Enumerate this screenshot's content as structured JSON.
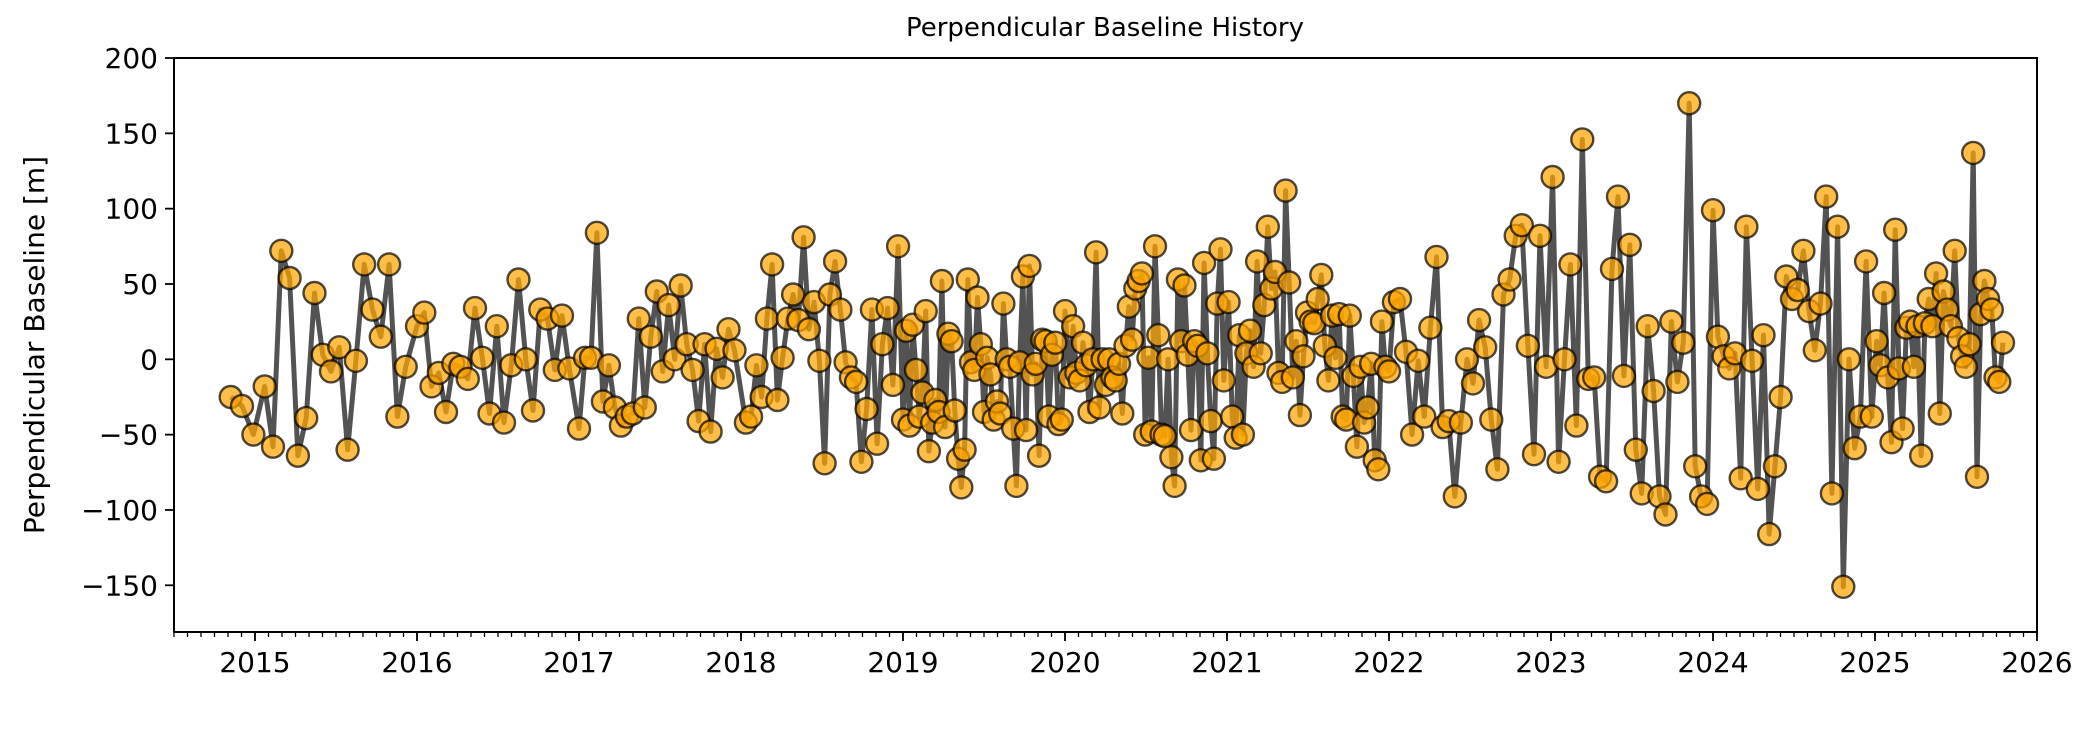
{
  "chart_data": {
    "type": "line",
    "title": "Perpendicular Baseline History",
    "xlabel": "",
    "ylabel": "Perpendicular Baseline [m]",
    "xlim": [
      2014.5,
      2026.0
    ],
    "ylim": [
      -181,
      200
    ],
    "x_ticks": [
      2015,
      2016,
      2017,
      2018,
      2019,
      2020,
      2021,
      2022,
      2023,
      2024,
      2025,
      2026
    ],
    "x_tick_labels": [
      "2015",
      "2016",
      "2017",
      "2018",
      "2019",
      "2020",
      "2021",
      "2022",
      "2023",
      "2024",
      "2025",
      "2026"
    ],
    "y_ticks": [
      200,
      150,
      100,
      50,
      0,
      -50,
      -100,
      -150
    ],
    "y_tick_labels": [
      "200",
      "150",
      "100",
      "50",
      "0",
      "−50",
      "−100",
      "−150"
    ],
    "grid": false,
    "legend": null,
    "colors": {
      "line": "#4a4a4a",
      "marker_fill": "#ffa500",
      "marker_edge": "#000000"
    },
    "series": [
      {
        "name": "Perpendicular baseline",
        "note": "acquisitions grouped by year; dates evenly spaced within each group (decimal years)",
        "segments": [
          {
            "x_start": 2014.85,
            "x_end": 2014.99,
            "y": [
              -25,
              -31,
              -50
            ]
          },
          {
            "x_start": 2015.06,
            "x_end": 2015.93,
            "y": [
              -18,
              -58,
              72,
              54,
              -64,
              -39,
              44,
              3,
              -8,
              8,
              -60,
              -1,
              63,
              33,
              15,
              63,
              -38,
              -5
            ]
          },
          {
            "x_start": 2016.0,
            "x_end": 2016.94,
            "y": [
              22,
              31,
              -18,
              -9,
              -35,
              -3,
              -5,
              -13,
              34,
              1,
              -36,
              22,
              -42,
              -4,
              53,
              0,
              -34,
              33,
              27,
              -7,
              29,
              -6
            ]
          },
          {
            "x_start": 2017.0,
            "x_end": 2017.96,
            "y": [
              -46,
              1,
              1,
              84,
              -28,
              -4,
              -32,
              -44,
              -38,
              -36,
              27,
              -32,
              15,
              45,
              -8,
              36,
              0,
              49,
              10,
              -7,
              -41,
              10,
              -48,
              7,
              -12,
              20,
              6
            ]
          },
          {
            "x_start": 2018.03,
            "x_end": 2018.97,
            "y": [
              -42,
              -38,
              -4,
              -25,
              27,
              63,
              -27,
              1,
              27,
              43,
              26,
              81,
              20,
              38,
              -1,
              -69,
              43,
              65,
              33,
              -2,
              -12,
              -15,
              -68,
              -33,
              33,
              -56,
              10,
              34,
              -17,
              75
            ]
          },
          {
            "x_start": 2019.0,
            "x_end": 2020.0,
            "y": [
              -40,
              19,
              -44,
              23,
              -7,
              -38,
              -22,
              32,
              -61,
              -42,
              -27,
              -35,
              52,
              -45,
              17,
              12,
              -34,
              -66,
              -85,
              -60,
              53,
              -2,
              -7,
              41,
              10,
              -35,
              1,
              -10,
              -40,
              -28,
              -36,
              37,
              0,
              -5,
              -46,
              -84,
              -2,
              55,
              -47,
              62,
              -10,
              -3,
              -64,
              13,
              12,
              -38,
              3,
              11,
              -43,
              -40,
              32
            ]
          },
          {
            "x_start": 2020.03,
            "x_end": 2020.98,
            "y": [
              -12,
              22,
              -9,
              -14,
              11,
              -4,
              -35,
              0,
              71,
              -32,
              0,
              -17,
              0,
              -12,
              -14,
              -3,
              -36,
              9,
              35,
              13,
              47,
              52,
              57,
              -50,
              1,
              -48,
              75,
              16,
              -50,
              -51,
              0,
              -65,
              -84,
              53,
              12,
              49,
              3,
              -47,
              12,
              9,
              -67,
              64,
              4,
              -41,
              -66,
              37,
              73,
              -14
            ]
          },
          {
            "x_start": 2021.01,
            "x_end": 2022.0,
            "y": [
              38,
              -38,
              -52,
              16,
              -50,
              4,
              19,
              -5,
              65,
              4,
              36,
              88,
              47,
              58,
              -9,
              -15,
              112,
              51,
              -12,
              12,
              -37,
              2,
              31,
              25,
              24,
              40,
              56,
              9,
              -14,
              29,
              1,
              30,
              -38,
              -40,
              29,
              -11,
              -58,
              -5,
              -42,
              -32,
              -3,
              -67,
              -73,
              25,
              -5,
              -8
            ]
          },
          {
            "x_start": 2022.03,
            "x_end": 2022.97,
            "y": [
              38,
              40,
              5,
              -50,
              -1,
              -38,
              21,
              68,
              -45,
              -41,
              -91,
              -42,
              0,
              -16,
              26,
              8,
              -40,
              -73,
              43,
              53,
              82,
              89,
              9,
              -63,
              82,
              -5
            ]
          },
          {
            "x_start": 2023.01,
            "x_end": 2024.0,
            "y": [
              121,
              -68,
              0,
              63,
              -44,
              146,
              -13,
              -12,
              -78,
              -81,
              60,
              108,
              -11,
              76,
              -60,
              -89,
              22,
              -21,
              -91,
              -103,
              25,
              -15,
              11,
              170,
              -71,
              -91,
              -96,
              99
            ]
          },
          {
            "x_start": 2024.03,
            "x_end": 2024.98,
            "y": [
              15,
              2,
              -6,
              4,
              -79,
              88,
              -1,
              -86,
              16,
              -116,
              -71,
              -25,
              55,
              40,
              46,
              72,
              32,
              6,
              37,
              108,
              -89,
              88,
              -151,
              0,
              -59,
              -38,
              65,
              -38
            ]
          },
          {
            "x_start": 2025.01,
            "x_end": 2025.79,
            "y": [
              12,
              -4,
              44,
              -12,
              -55,
              86,
              -6,
              -46,
              21,
              25,
              -5,
              22,
              -64,
              24,
              40,
              22,
              57,
              -36,
              45,
              33,
              22,
              72,
              14,
              2,
              -5,
              10,
              137,
              -78,
              30,
              52,
              40,
              33,
              -12,
              -15,
              11
            ]
          }
        ]
      }
    ]
  }
}
